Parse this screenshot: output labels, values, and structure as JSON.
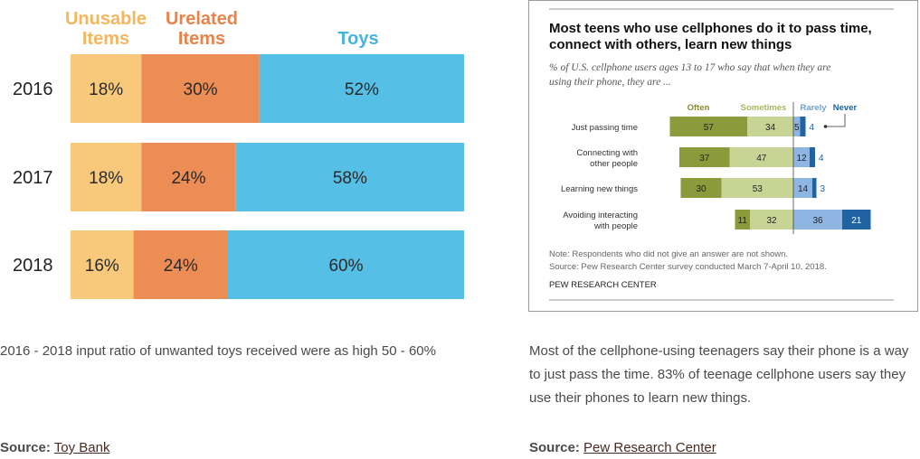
{
  "colors": {
    "unusable": "#f9c97b",
    "unrelated": "#ec8d55",
    "toys": "#55bfe5",
    "unusable_text": "#f4b65f",
    "unrelated_text": "#e9834a",
    "toys_text": "#45b4de",
    "often": "#8b9a3a",
    "sometimes": "#c8d495",
    "rarely": "#8fb6e3",
    "never": "#1f63a2",
    "often_text": "#8b8a2a",
    "sometimes_text": "#a7b85a",
    "rarely_text": "#6b9fd8",
    "never_text": "#1f63a2"
  },
  "left": {
    "caption": "2016 - 2018 input ratio of unwanted toys received were as high 50 - 60%",
    "source_label": "Source:",
    "source_link": "Toy Bank"
  },
  "right": {
    "caption": "Most of the cellphone-using teenagers say their phone is a way to just pass the time. 83% of teenage cellphone users say they use their phones to learn new things.",
    "source_label": "Source:",
    "source_link": "Pew Research Center"
  },
  "chart_data": [
    {
      "type": "bar",
      "stacked": true,
      "orientation": "horizontal",
      "categories": [
        "2016",
        "2017",
        "2018"
      ],
      "series": [
        {
          "name": "Unusable Items",
          "name_lines": [
            "Unusable",
            "Items"
          ],
          "values": [
            18,
            18,
            16
          ],
          "labels": [
            "18%",
            "18%",
            "16%"
          ]
        },
        {
          "name": "Urelated Items",
          "name_lines": [
            "Urelated",
            "Items"
          ],
          "values": [
            30,
            24,
            24
          ],
          "labels": [
            "30%",
            "24%",
            "24%"
          ]
        },
        {
          "name": "Toys",
          "name_lines": [
            "Toys"
          ],
          "values": [
            52,
            58,
            60
          ],
          "labels": [
            "52%",
            "58%",
            "60%"
          ]
        }
      ],
      "xlim": [
        0,
        100
      ],
      "legend": "top"
    },
    {
      "type": "bar",
      "stacked": true,
      "orientation": "horizontal",
      "diverging": true,
      "title_lines": [
        "Most teens who use cellphones do it to pass time,",
        "connect with others, learn new things"
      ],
      "subtitle_lines": [
        "% of U.S. cellphone users ages 13 to 17 who say that when they are",
        "using their phone, they are ..."
      ],
      "categories": [
        {
          "name": "Just passing time",
          "lines": [
            "Just passing time"
          ]
        },
        {
          "name": "Connecting with other people",
          "lines": [
            "Connecting with",
            "other people"
          ]
        },
        {
          "name": "Learning new things",
          "lines": [
            "Learning new things"
          ]
        },
        {
          "name": "Avoiding interacting with people",
          "lines": [
            "Avoiding interacting",
            "with people"
          ]
        }
      ],
      "series": [
        {
          "name": "Often",
          "side": "left",
          "values": [
            57,
            37,
            30,
            11
          ]
        },
        {
          "name": "Sometimes",
          "side": "left",
          "values": [
            34,
            47,
            53,
            32
          ]
        },
        {
          "name": "Rarely",
          "side": "right",
          "values": [
            5,
            12,
            14,
            36
          ]
        },
        {
          "name": "Never",
          "side": "right",
          "values": [
            4,
            4,
            3,
            21
          ]
        }
      ],
      "note_lines": [
        "Note: Respondents who did not give an answer are not shown.",
        "Source: Pew Research Center survey conducted March 7-April 10, 2018."
      ],
      "org": "PEW RESEARCH CENTER",
      "legend": "top"
    }
  ]
}
